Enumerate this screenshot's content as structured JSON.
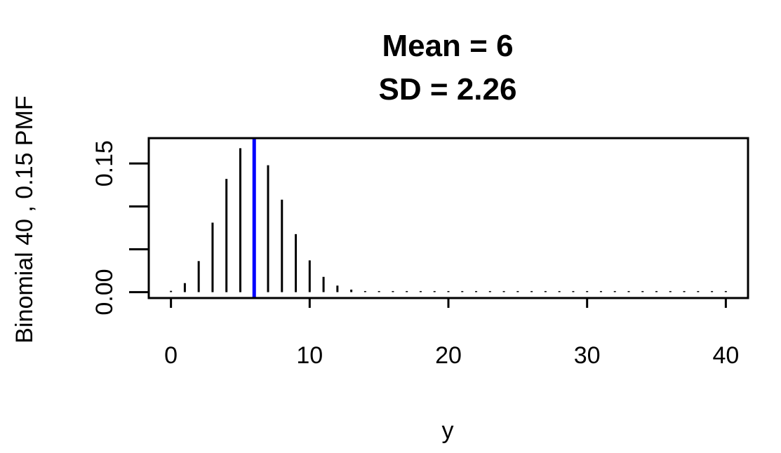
{
  "chart_data": {
    "type": "bar",
    "title_lines": [
      "Mean = 6",
      "SD = 2.26"
    ],
    "xlabel": "y",
    "ylabel": "Binomial 40 , 0.15  PMF",
    "x": [
      0,
      1,
      2,
      3,
      4,
      5,
      6,
      7,
      8,
      9,
      10,
      11,
      12,
      13,
      14,
      15,
      16,
      17,
      18,
      19,
      20,
      21,
      22,
      23,
      24,
      25,
      26,
      27,
      28,
      29,
      30,
      31,
      32,
      33,
      34,
      35,
      36,
      37,
      38,
      39,
      40
    ],
    "values": [
      0.0015,
      0.0105,
      0.0362,
      0.081,
      0.1321,
      0.1678,
      0.1727,
      0.148,
      0.1078,
      0.0676,
      0.037,
      0.0178,
      0.0076,
      0.0029,
      0.001,
      0.0003,
      0.0001,
      0,
      0,
      0,
      0,
      0,
      0,
      0,
      0,
      0,
      0,
      0,
      0,
      0,
      0,
      0,
      0,
      0,
      0,
      0,
      0,
      0,
      0,
      0,
      0
    ],
    "mean_line": {
      "x": 6,
      "color": "#0000ff"
    },
    "bar_color": "#000000",
    "xlim": [
      -1.6,
      41.6
    ],
    "ylim": [
      -0.0069,
      0.1796
    ],
    "x_ticks": [
      0,
      10,
      20,
      30,
      40
    ],
    "x_tick_labels": [
      "0",
      "10",
      "20",
      "30",
      "40"
    ],
    "y_ticks": [
      0,
      0.05,
      0.1,
      0.15
    ],
    "y_tick_labels": [
      "0.00",
      "",
      "",
      "0.15"
    ],
    "grid": false,
    "legend": "none"
  }
}
